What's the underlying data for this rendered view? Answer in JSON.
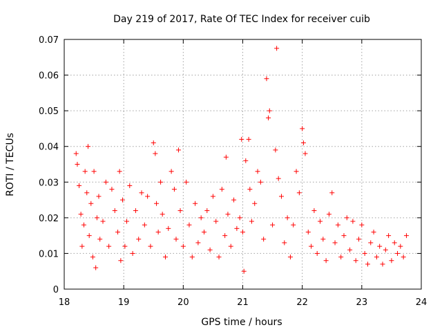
{
  "chart_data": {
    "type": "scatter",
    "title": "Day 219 of 2017, Rate Of TEC Index for receiver cuib",
    "xlabel": "GPS time / hours",
    "ylabel": "ROTI / TECUs",
    "xlim": [
      18,
      24
    ],
    "ylim": [
      0,
      0.07
    ],
    "xticks": [
      "18",
      "19",
      "20",
      "21",
      "22",
      "23",
      "24"
    ],
    "yticks": [
      "0",
      "0.01",
      "0.02",
      "0.03",
      "0.04",
      "0.05",
      "0.06",
      "0.07"
    ],
    "grid": true,
    "marker": "+",
    "color": "#ff0000",
    "series": [
      {
        "name": "ROTI",
        "x": [
          18.2,
          18.22,
          18.25,
          18.28,
          18.3,
          18.33,
          18.35,
          18.38,
          18.4,
          18.42,
          18.45,
          18.48,
          18.5,
          18.53,
          18.55,
          18.58,
          18.6,
          18.65,
          18.7,
          18.75,
          18.8,
          18.85,
          18.9,
          18.93,
          18.95,
          18.98,
          19.02,
          19.05,
          19.1,
          19.15,
          19.2,
          19.25,
          19.3,
          19.35,
          19.4,
          19.45,
          19.5,
          19.53,
          19.55,
          19.58,
          19.62,
          19.65,
          19.7,
          19.75,
          19.8,
          19.85,
          19.88,
          19.92,
          19.95,
          20.0,
          20.05,
          20.1,
          20.15,
          20.2,
          20.25,
          20.3,
          20.35,
          20.4,
          20.45,
          20.5,
          20.55,
          20.6,
          20.65,
          20.7,
          20.72,
          20.75,
          20.8,
          20.85,
          20.9,
          20.95,
          20.98,
          21.0,
          21.02,
          21.05,
          21.1,
          21.12,
          21.15,
          21.2,
          21.25,
          21.3,
          21.35,
          21.4,
          21.43,
          21.45,
          21.5,
          21.55,
          21.57,
          21.6,
          21.65,
          21.7,
          21.75,
          21.8,
          21.85,
          21.9,
          21.95,
          22.0,
          22.02,
          22.05,
          22.1,
          22.15,
          22.2,
          22.25,
          22.3,
          22.35,
          22.4,
          22.45,
          22.5,
          22.55,
          22.6,
          22.65,
          22.7,
          22.75,
          22.8,
          22.85,
          22.9,
          22.95,
          23.0,
          23.05,
          23.1,
          23.15,
          23.2,
          23.25,
          23.3,
          23.35,
          23.4,
          23.45,
          23.5,
          23.55,
          23.6,
          23.65,
          23.7,
          23.75
        ],
        "y": [
          0.038,
          0.035,
          0.029,
          0.021,
          0.012,
          0.018,
          0.033,
          0.027,
          0.04,
          0.015,
          0.024,
          0.009,
          0.033,
          0.006,
          0.02,
          0.026,
          0.014,
          0.019,
          0.03,
          0.012,
          0.028,
          0.022,
          0.016,
          0.033,
          0.008,
          0.025,
          0.012,
          0.019,
          0.029,
          0.01,
          0.022,
          0.014,
          0.027,
          0.018,
          0.026,
          0.012,
          0.041,
          0.038,
          0.024,
          0.016,
          0.03,
          0.021,
          0.009,
          0.017,
          0.033,
          0.028,
          0.014,
          0.039,
          0.022,
          0.012,
          0.03,
          0.018,
          0.009,
          0.024,
          0.013,
          0.02,
          0.016,
          0.022,
          0.011,
          0.026,
          0.019,
          0.009,
          0.028,
          0.015,
          0.037,
          0.021,
          0.012,
          0.025,
          0.017,
          0.02,
          0.042,
          0.016,
          0.005,
          0.036,
          0.042,
          0.028,
          0.019,
          0.024,
          0.033,
          0.03,
          0.014,
          0.059,
          0.048,
          0.05,
          0.018,
          0.039,
          0.0675,
          0.031,
          0.026,
          0.013,
          0.02,
          0.009,
          0.018,
          0.033,
          0.027,
          0.045,
          0.041,
          0.038,
          0.016,
          0.012,
          0.022,
          0.01,
          0.019,
          0.014,
          0.008,
          0.021,
          0.027,
          0.013,
          0.018,
          0.009,
          0.015,
          0.02,
          0.011,
          0.019,
          0.008,
          0.014,
          0.018,
          0.01,
          0.007,
          0.013,
          0.016,
          0.009,
          0.012,
          0.007,
          0.011,
          0.015,
          0.008,
          0.013,
          0.01,
          0.012,
          0.009,
          0.015
        ]
      }
    ]
  }
}
